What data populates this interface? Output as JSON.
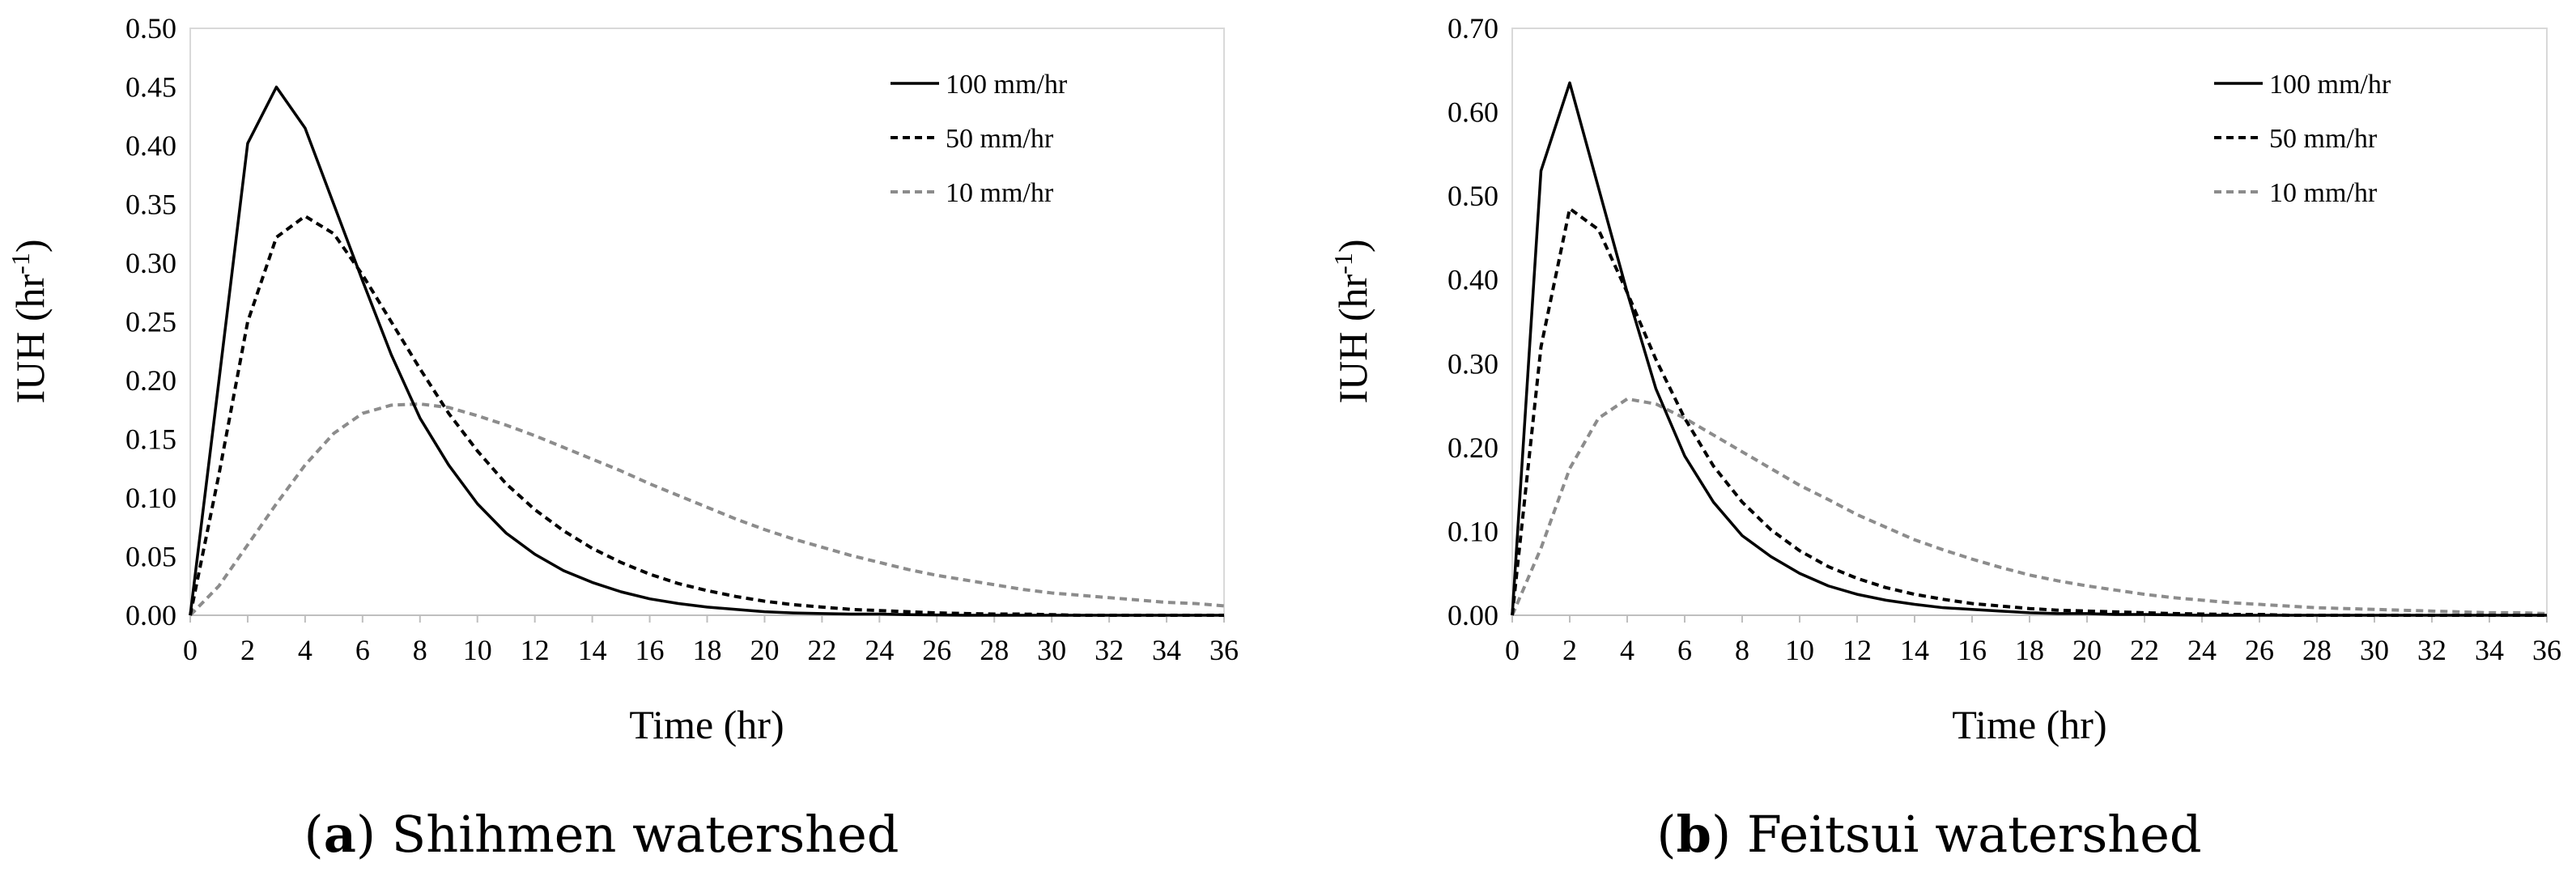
{
  "figure": {
    "captions": [
      {
        "open": "(",
        "letter": "a",
        "close": ")",
        "text": " Shihmen watershed"
      },
      {
        "open": "(",
        "letter": "b",
        "close": ")",
        "text": " Feitsui watershed"
      }
    ]
  },
  "chart_data": [
    {
      "type": "line",
      "title": "",
      "xlabel": "Time (hr)",
      "ylabel_main": "IUH  (hr",
      "ylabel_sup": "-1",
      "ylabel_close": ")",
      "xlim": [
        0,
        36
      ],
      "ylim": [
        0,
        0.5
      ],
      "xticks": [
        0,
        2,
        4,
        6,
        8,
        10,
        12,
        14,
        16,
        18,
        20,
        22,
        24,
        26,
        28,
        30,
        32,
        34,
        36
      ],
      "yticks": [
        0,
        0.05,
        0.1,
        0.15,
        0.2,
        0.25,
        0.3,
        0.35,
        0.4,
        0.45,
        0.5
      ],
      "ytick_labels": [
        "0.00",
        "0.05",
        "0.10",
        "0.15",
        "0.20",
        "0.25",
        "0.30",
        "0.35",
        "0.40",
        "0.45",
        "0.50"
      ],
      "grid": false,
      "legend_position": "top-right",
      "x": [
        0,
        1,
        2,
        3,
        4,
        5,
        6,
        7,
        8,
        9,
        10,
        11,
        12,
        13,
        14,
        15,
        16,
        17,
        18,
        19,
        20,
        21,
        22,
        23,
        24,
        25,
        26,
        27,
        28,
        29,
        30,
        31,
        32,
        33,
        34,
        35,
        36
      ],
      "series": [
        {
          "name": "100 mm/hr",
          "style": "solid",
          "color": "#000000",
          "values": [
            0,
            0.2,
            0.402,
            0.45,
            0.415,
            0.35,
            0.285,
            0.222,
            0.168,
            0.128,
            0.095,
            0.07,
            0.052,
            0.038,
            0.028,
            0.02,
            0.014,
            0.01,
            0.007,
            0.005,
            0.003,
            0.002,
            0.0015,
            0.001,
            0.001,
            0.0005,
            0.0003,
            0,
            0,
            0,
            0,
            0,
            0,
            0,
            0,
            0,
            0
          ]
        },
        {
          "name": "50 mm/hr",
          "style": "dashed",
          "color": "#000000",
          "values": [
            0,
            0.12,
            0.25,
            0.322,
            0.34,
            0.325,
            0.29,
            0.25,
            0.21,
            0.172,
            0.14,
            0.112,
            0.09,
            0.072,
            0.057,
            0.045,
            0.035,
            0.027,
            0.021,
            0.016,
            0.012,
            0.009,
            0.007,
            0.005,
            0.004,
            0.003,
            0.002,
            0.0015,
            0.001,
            0.001,
            0.0005,
            0,
            0,
            0,
            0,
            0,
            0
          ]
        },
        {
          "name": "10 mm/hr",
          "style": "dashed",
          "color": "#8c8c8c",
          "values": [
            0,
            0.025,
            0.06,
            0.095,
            0.128,
            0.155,
            0.172,
            0.179,
            0.18,
            0.177,
            0.17,
            0.162,
            0.153,
            0.143,
            0.133,
            0.123,
            0.112,
            0.102,
            0.092,
            0.082,
            0.073,
            0.065,
            0.058,
            0.051,
            0.045,
            0.039,
            0.034,
            0.03,
            0.026,
            0.022,
            0.019,
            0.017,
            0.015,
            0.013,
            0.011,
            0.01,
            0.008
          ]
        }
      ]
    },
    {
      "type": "line",
      "title": "",
      "xlabel": "Time (hr)",
      "ylabel_main": "IUH  (hr",
      "ylabel_sup": "-1",
      "ylabel_close": ")",
      "xlim": [
        0,
        36
      ],
      "ylim": [
        0,
        0.7
      ],
      "xticks": [
        0,
        2,
        4,
        6,
        8,
        10,
        12,
        14,
        16,
        18,
        20,
        22,
        24,
        26,
        28,
        30,
        32,
        34,
        36
      ],
      "yticks": [
        0,
        0.1,
        0.2,
        0.3,
        0.4,
        0.5,
        0.6,
        0.7
      ],
      "ytick_labels": [
        "0.00",
        "0.10",
        "0.20",
        "0.30",
        "0.40",
        "0.50",
        "0.60",
        "0.70"
      ],
      "grid": false,
      "legend_position": "top-right",
      "x": [
        0,
        1,
        2,
        3,
        4,
        5,
        6,
        7,
        8,
        9,
        10,
        11,
        12,
        13,
        14,
        15,
        16,
        17,
        18,
        19,
        20,
        21,
        22,
        23,
        24,
        25,
        26,
        27,
        28,
        29,
        30,
        31,
        32,
        33,
        34,
        35,
        36
      ],
      "series": [
        {
          "name": "100 mm/hr",
          "style": "solid",
          "color": "#000000",
          "values": [
            0,
            0.53,
            0.635,
            0.51,
            0.385,
            0.27,
            0.19,
            0.135,
            0.095,
            0.07,
            0.05,
            0.035,
            0.025,
            0.018,
            0.013,
            0.009,
            0.007,
            0.005,
            0.003,
            0.002,
            0.002,
            0.001,
            0.001,
            0.0005,
            0,
            0,
            0,
            0,
            0,
            0,
            0,
            0,
            0,
            0,
            0,
            0,
            0
          ]
        },
        {
          "name": "50 mm/hr",
          "style": "dashed",
          "color": "#000000",
          "values": [
            0,
            0.32,
            0.485,
            0.46,
            0.385,
            0.305,
            0.235,
            0.178,
            0.135,
            0.102,
            0.077,
            0.058,
            0.044,
            0.033,
            0.025,
            0.019,
            0.014,
            0.011,
            0.008,
            0.006,
            0.005,
            0.004,
            0.003,
            0.002,
            0.0015,
            0.001,
            0.001,
            0,
            0,
            0,
            0,
            0,
            0,
            0,
            0,
            0,
            0
          ]
        },
        {
          "name": "10 mm/hr",
          "style": "dashed",
          "color": "#8c8c8c",
          "values": [
            0,
            0.08,
            0.175,
            0.235,
            0.258,
            0.252,
            0.235,
            0.215,
            0.195,
            0.175,
            0.155,
            0.138,
            0.12,
            0.105,
            0.09,
            0.078,
            0.067,
            0.057,
            0.048,
            0.041,
            0.035,
            0.03,
            0.025,
            0.021,
            0.018,
            0.015,
            0.013,
            0.011,
            0.009,
            0.008,
            0.007,
            0.006,
            0.005,
            0.004,
            0.003,
            0.003,
            0.002
          ]
        }
      ]
    }
  ]
}
